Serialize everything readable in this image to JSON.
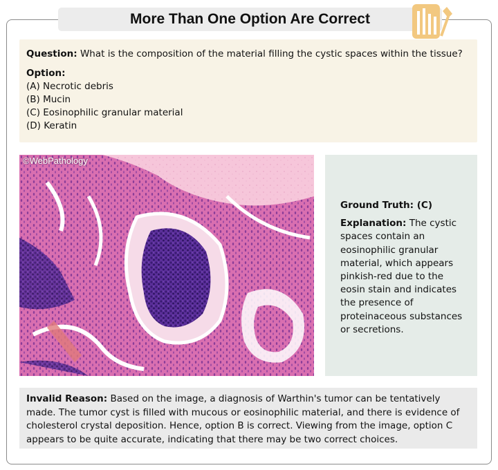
{
  "header": {
    "title": "More Than One Option Are Correct"
  },
  "question": {
    "label": "Question:",
    "text": "What is the composition of the material filling the cystic spaces within the tissue?",
    "options_label": "Option:",
    "options": [
      "(A) Necrotic debris",
      "(B) Mucin",
      "(C) Eosinophilic granular material",
      "(D) Keratin"
    ]
  },
  "image": {
    "watermark": "©WebPathology"
  },
  "answer": {
    "ground_truth": "Ground Truth: (C)",
    "explanation_label": "Explanation:",
    "explanation_text": "The cystic spaces contain an eosinophilic granular material, which appears pinkish-red due to the eosin stain and indicates the presence of proteinaceous substances or secretions."
  },
  "invalid": {
    "label": "Invalid Reason:",
    "text": "Based on the image, a diagnosis of Warthin's tumor can be tentatively made. The tumor cyst is filled with mucous or eosinophilic material, and there is evidence of cholesterol crystal deposition. Hence, option B is correct. Viewing from the image, option C appears to be quite accurate, indicating that there may be two correct choices."
  },
  "colors": {
    "title_bg": "#ececec",
    "question_bg": "#f8f3e6",
    "answer_bg": "#e5ece8",
    "invalid_bg": "#eaeaea",
    "icon_accent": "#f2c880"
  },
  "icons": {
    "title_icon": "bar-chart-flag-icon"
  }
}
